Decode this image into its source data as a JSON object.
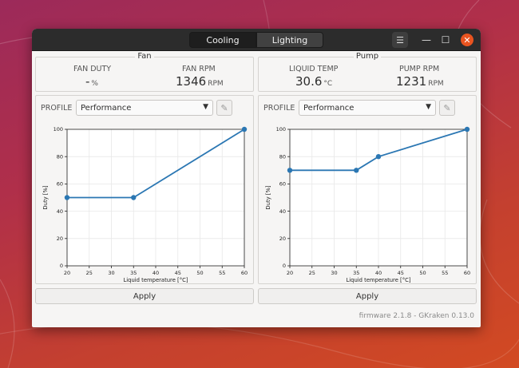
{
  "tabs": [
    {
      "label": "Cooling"
    },
    {
      "label": "Lighting"
    }
  ],
  "window_controls": {
    "menu": "☰",
    "minimize": "—",
    "maximize": "☐",
    "close": "✕"
  },
  "fan": {
    "title": "Fan",
    "duty_label": "FAN DUTY",
    "duty_value": "-",
    "duty_unit": "%",
    "rpm_label": "FAN RPM",
    "rpm_value": "1346",
    "rpm_unit": "RPM"
  },
  "pump": {
    "title": "Pump",
    "temp_label": "LIQUID TEMP",
    "temp_value": "30.6",
    "temp_unit": "°C",
    "rpm_label": "PUMP RPM",
    "rpm_value": "1231",
    "rpm_unit": "RPM"
  },
  "profiles": {
    "label": "PROFILE",
    "fan_selected": "Performance",
    "pump_selected": "Performance",
    "dropdown_icon": "chevron-down-icon",
    "edit_icon": "pencil-icon"
  },
  "apply_label": "Apply",
  "footer": "firmware 2.1.8 - GKraken 0.13.0",
  "colors": {
    "line": "#2b77b3",
    "titlebar": "#2c2c2c",
    "close": "#e95420"
  },
  "chart_data": [
    {
      "type": "line",
      "name": "fan",
      "x": [
        20,
        35,
        60
      ],
      "y": [
        50,
        50,
        100
      ],
      "xlabel": "Liquid temperature [°C]",
      "ylabel": "Duty [%]",
      "xlim": [
        20,
        60
      ],
      "ylim": [
        0,
        100
      ],
      "xticks": [
        20,
        25,
        30,
        35,
        40,
        45,
        50,
        55,
        60
      ],
      "yticks": [
        0,
        20,
        40,
        60,
        80,
        100
      ],
      "grid": true
    },
    {
      "type": "line",
      "name": "pump",
      "x": [
        20,
        35,
        40,
        60
      ],
      "y": [
        70,
        70,
        80,
        100
      ],
      "xlabel": "Liquid temperature [°C]",
      "ylabel": "Duty [%]",
      "xlim": [
        20,
        60
      ],
      "ylim": [
        0,
        100
      ],
      "xticks": [
        20,
        25,
        30,
        35,
        40,
        45,
        50,
        55,
        60
      ],
      "yticks": [
        0,
        20,
        40,
        60,
        80,
        100
      ],
      "grid": true
    }
  ]
}
